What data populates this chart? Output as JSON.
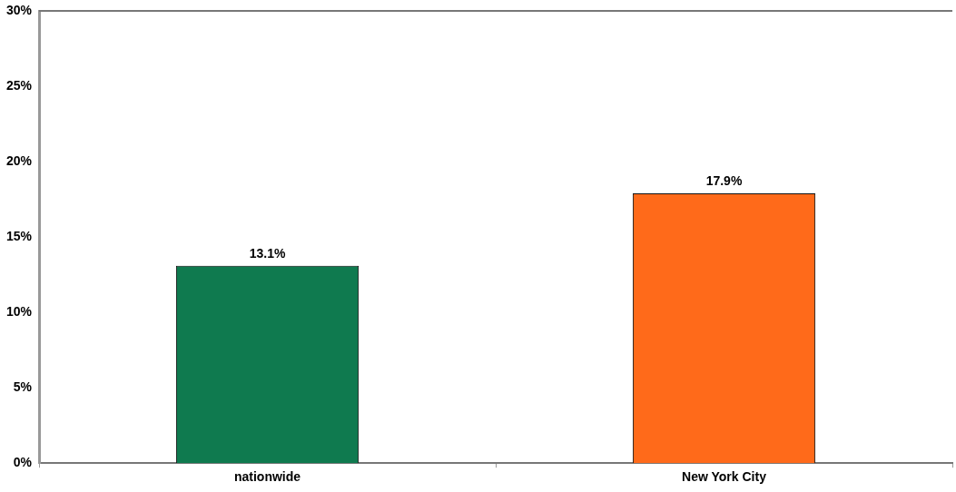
{
  "chart_data": {
    "type": "bar",
    "categories": [
      "nationwide",
      "New York City"
    ],
    "values": [
      13.1,
      17.9
    ],
    "colors": [
      "#0f7a4f",
      "#ff6a1a"
    ],
    "value_labels": [
      "13.1%",
      "17.9%"
    ],
    "ylim": [
      0,
      30
    ],
    "yticks": [
      {
        "value": 0,
        "label": "0%"
      },
      {
        "value": 5,
        "label": "5%"
      },
      {
        "value": 10,
        "label": "10%"
      },
      {
        "value": 15,
        "label": "15%"
      },
      {
        "value": 20,
        "label": "20%"
      },
      {
        "value": 25,
        "label": "25%"
      },
      {
        "value": 30,
        "label": "30%"
      }
    ],
    "grid": false,
    "legend": false
  }
}
